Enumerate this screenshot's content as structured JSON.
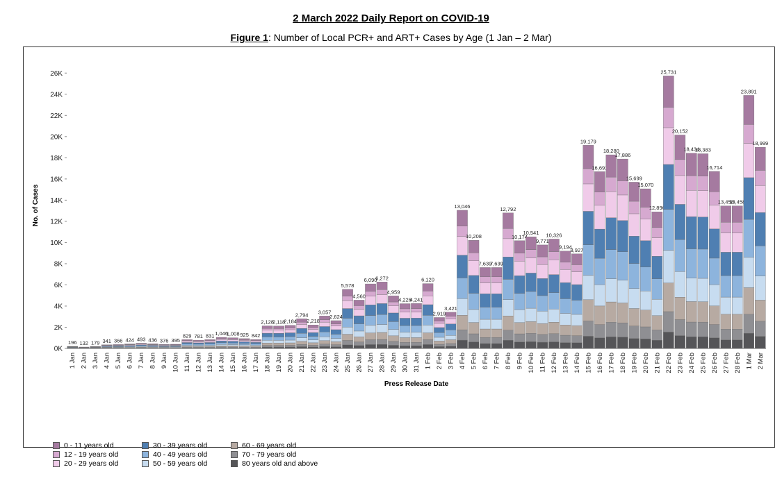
{
  "report": {
    "title": "2 March 2022 Daily Report on COVID-19",
    "figure_label": "Figure 1",
    "figure_caption": ": Number of Local PCR+ and ART+ Cases by Age (1 Jan – 2 Mar)"
  },
  "chart_data": {
    "type": "bar",
    "stacked": true,
    "xlabel": "Press Release Date",
    "ylabel": "No. of Cases",
    "ylim": [
      0,
      27000
    ],
    "yticks": [
      "0K",
      "2K",
      "4K",
      "6K",
      "8K",
      "10K",
      "12K",
      "14K",
      "16K",
      "18K",
      "20K",
      "22K",
      "24K",
      "26K"
    ],
    "grid": false,
    "legend_position": "bottom-left",
    "categories": [
      "1 Jan",
      "2 Jan",
      "3 Jan",
      "4 Jan",
      "5 Jan",
      "6 Jan",
      "7 Jan",
      "8 Jan",
      "9 Jan",
      "10 Jan",
      "11 Jan",
      "12 Jan",
      "13 Jan",
      "14 Jan",
      "15 Jan",
      "16 Jan",
      "17 Jan",
      "18 Jan",
      "19 Jan",
      "20 Jan",
      "21 Jan",
      "22 Jan",
      "23 Jan",
      "24 Jan",
      "25 Jan",
      "26 Jan",
      "27 Jan",
      "28 Jan",
      "29 Jan",
      "30 Jan",
      "31 Jan",
      "1 Feb",
      "2 Feb",
      "3 Feb",
      "4 Feb",
      "5 Feb",
      "6 Feb",
      "7 Feb",
      "8 Feb",
      "9 Feb",
      "10 Feb",
      "11 Feb",
      "12 Feb",
      "13 Feb",
      "14 Feb",
      "15 Feb",
      "16 Feb",
      "17 Feb",
      "18 Feb",
      "19 Feb",
      "20 Feb",
      "21 Feb",
      "22 Feb",
      "23 Feb",
      "24 Feb",
      "25 Feb",
      "26 Feb",
      "27 Feb",
      "28 Feb",
      "1 Mar",
      "2 Mar"
    ],
    "totals": [
      196,
      132,
      179,
      341,
      366,
      424,
      493,
      436,
      376,
      395,
      829,
      781,
      831,
      1046,
      1008,
      925,
      842,
      2128,
      2118,
      2184,
      2794,
      2218,
      3057,
      2624,
      5578,
      4560,
      6090,
      6272,
      4959,
      4226,
      4241,
      6120,
      2919,
      3421,
      13046,
      10208,
      7639,
      7639,
      12792,
      10174,
      10541,
      9771,
      10326,
      9194,
      8927,
      19179,
      16691,
      18280,
      17886,
      15699,
      15070,
      12896,
      25731,
      20152,
      18434,
      18383,
      16714,
      13458,
      13458,
      23891,
      18999
    ],
    "series_names": [
      "0 - 11 years old",
      "12 - 19 years old",
      "20 - 29 years old",
      "30 - 39 years old",
      "40 - 49 years old",
      "50 - 59 years old",
      "60 - 69 years old",
      "70 - 79 years old",
      "80 years old and above"
    ],
    "series_colors": [
      "#a57aa0",
      "#d6a9d0",
      "#f0cbe9",
      "#4f7fb2",
      "#8db4dd",
      "#c7dcf0",
      "#b7aaa2",
      "#8f8f93",
      "#555558"
    ],
    "age_shares": [
      0.115,
      0.075,
      0.135,
      0.165,
      0.15,
      0.12,
      0.105,
      0.075,
      0.06
    ],
    "legend_left": [
      {
        "label": "0 - 11 years old",
        "color": "#a57aa0"
      },
      {
        "label": "12 - 19 years old",
        "color": "#d6a9d0"
      },
      {
        "label": "20 - 29 years old",
        "color": "#f0cbe9"
      }
    ],
    "legend_mid": [
      {
        "label": "30 - 39 years old",
        "color": "#4f7fb2"
      },
      {
        "label": "40 - 49 years old",
        "color": "#8db4dd"
      },
      {
        "label": "50 - 59 years old",
        "color": "#c7dcf0"
      }
    ],
    "legend_right": [
      {
        "label": "60 - 69 years old",
        "color": "#b7aaa2"
      },
      {
        "label": "70 - 79 years old",
        "color": "#8f8f93"
      },
      {
        "label": "80 years old and above",
        "color": "#555558"
      }
    ]
  }
}
